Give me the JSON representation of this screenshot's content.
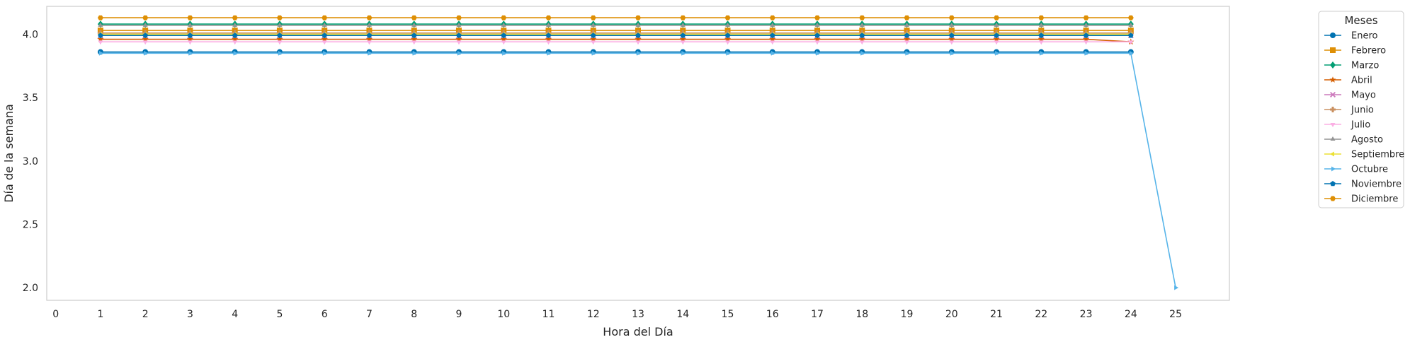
{
  "chart_data": {
    "type": "line",
    "xlabel": "Hora del Día",
    "ylabel": "Día de la semana",
    "xlim": [
      -0.2,
      26.2
    ],
    "ylim": [
      1.9,
      4.22
    ],
    "xticks": [
      0,
      1,
      2,
      3,
      4,
      5,
      6,
      7,
      8,
      9,
      10,
      11,
      12,
      13,
      14,
      15,
      16,
      17,
      18,
      19,
      20,
      21,
      22,
      23,
      24,
      25
    ],
    "yticks": [
      2.0,
      2.5,
      3.0,
      3.5,
      4.0
    ],
    "ytick_labels": [
      "2.0",
      "2.5",
      "3.0",
      "3.5",
      "4.0"
    ],
    "grid": false,
    "legend": {
      "title": "Meses",
      "placement": "outside-right-top"
    },
    "series": [
      {
        "name": "Enero",
        "color": "#0173b2",
        "marker": "circle",
        "y": 3.86,
        "x_start": 1,
        "x_end": 24
      },
      {
        "name": "Febrero",
        "color": "#de8f05",
        "marker": "square",
        "y": 4.03,
        "x_start": 1,
        "x_end": 24
      },
      {
        "name": "Marzo",
        "color": "#029e73",
        "marker": "diamond",
        "y": 4.08,
        "x_start": 1,
        "x_end": 24
      },
      {
        "name": "Abril",
        "color": "#d55e00",
        "marker": "star",
        "y": 3.96,
        "x_start": 1,
        "x_end": 24,
        "last_y": 3.94
      },
      {
        "name": "Mayo",
        "color": "#cc78bc",
        "marker": "x",
        "y": 3.99,
        "x_start": 1,
        "x_end": 24
      },
      {
        "name": "Junio",
        "color": "#ca9161",
        "marker": "plus",
        "y": 4.01,
        "x_start": 1,
        "x_end": 24
      },
      {
        "name": "Julio",
        "color": "#fbafe4",
        "marker": "triangle-down",
        "y": 3.94,
        "x_start": 1,
        "x_end": 24
      },
      {
        "name": "Agosto",
        "color": "#949494",
        "marker": "triangle-up",
        "y": 4.07,
        "x_start": 1,
        "x_end": 24
      },
      {
        "name": "Septiembre",
        "color": "#ece133",
        "marker": "triangle-left",
        "y": 4.0,
        "x_start": 1,
        "x_end": 24
      },
      {
        "name": "Octubre",
        "color": "#56b4e9",
        "marker": "triangle-right",
        "y": 3.85,
        "x_start": 1,
        "x_end": 24,
        "extra": [
          25,
          2.0
        ]
      },
      {
        "name": "Noviembre",
        "color": "#0173b2",
        "marker": "pentagon",
        "y": 3.99,
        "x_start": 1,
        "x_end": 24
      },
      {
        "name": "Diciembre",
        "color": "#de8f05",
        "marker": "hexagon",
        "y": 4.13,
        "x_start": 1,
        "x_end": 24
      }
    ]
  }
}
